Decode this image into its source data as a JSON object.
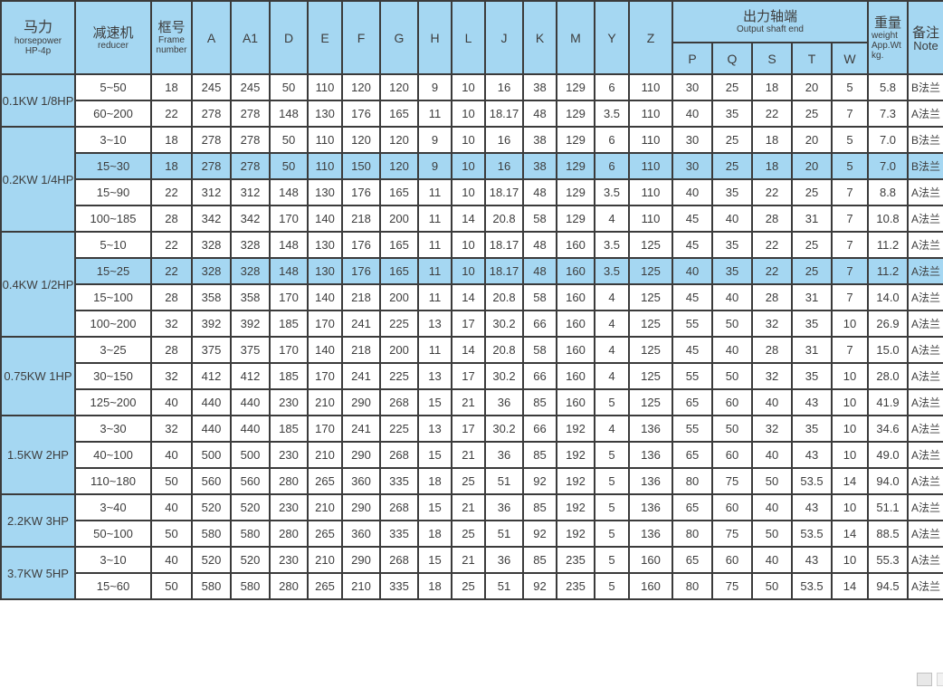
{
  "colors": {
    "header_blue": "#a5d7f2",
    "highlight_blue": "#a5d7f2",
    "border": "#3b3b3b",
    "text": "#3d3d3d"
  },
  "icons": {
    "corner_grip": "scrollbar-corner"
  },
  "table": {
    "header": {
      "power": {
        "zh": "马力",
        "en1": "horsepower",
        "en2": "HP-4p"
      },
      "reducer": {
        "zh": "减速机",
        "en1": "reducer"
      },
      "frame": {
        "zh": "框号",
        "en1": "Frame",
        "en2": "number"
      },
      "dims": [
        "A",
        "A1",
        "D",
        "E",
        "F",
        "G",
        "H",
        "L",
        "J",
        "K",
        "M",
        "Y",
        "Z"
      ],
      "output_shaft": {
        "zh": "出力轴端",
        "en1": "Output shaft end",
        "subs": [
          "P",
          "Q",
          "S",
          "T",
          "W"
        ]
      },
      "weight": {
        "zh": "重量",
        "en1": "weight",
        "en2": "App.Wt",
        "en3": "kg."
      },
      "note": {
        "zh": "备注",
        "en1": "Note"
      }
    },
    "groups": [
      {
        "power": "0.1KW 1/8HP",
        "rows": [
          {
            "reducer": "5~50",
            "highlight": false,
            "cells": [
              "18",
              "245",
              "245",
              "50",
              "110",
              "120",
              "120",
              "9",
              "10",
              "16",
              "38",
              "129",
              "6",
              "110",
              "30",
              "25",
              "18",
              "20",
              "5"
            ],
            "weight": "5.8",
            "note": "B法兰"
          },
          {
            "reducer": "60~200",
            "highlight": false,
            "cells": [
              "22",
              "278",
              "278",
              "148",
              "130",
              "176",
              "165",
              "11",
              "10",
              "18.17",
              "48",
              "129",
              "3.5",
              "110",
              "40",
              "35",
              "22",
              "25",
              "7"
            ],
            "weight": "7.3",
            "note": "A法兰"
          }
        ]
      },
      {
        "power": "0.2KW 1/4HP",
        "rows": [
          {
            "reducer": "3~10",
            "highlight": false,
            "cells": [
              "18",
              "278",
              "278",
              "50",
              "110",
              "120",
              "120",
              "9",
              "10",
              "16",
              "38",
              "129",
              "6",
              "110",
              "30",
              "25",
              "18",
              "20",
              "5"
            ],
            "weight": "7.0",
            "note": "B法兰"
          },
          {
            "reducer": "15~30",
            "highlight": true,
            "cells": [
              "18",
              "278",
              "278",
              "50",
              "110",
              "150",
              "120",
              "9",
              "10",
              "16",
              "38",
              "129",
              "6",
              "110",
              "30",
              "25",
              "18",
              "20",
              "5"
            ],
            "weight": "7.0",
            "note": "B法兰"
          },
          {
            "reducer": "15~90",
            "highlight": false,
            "cells": [
              "22",
              "312",
              "312",
              "148",
              "130",
              "176",
              "165",
              "11",
              "10",
              "18.17",
              "48",
              "129",
              "3.5",
              "110",
              "40",
              "35",
              "22",
              "25",
              "7"
            ],
            "weight": "8.8",
            "note": "A法兰"
          },
          {
            "reducer": "100~185",
            "highlight": false,
            "cells": [
              "28",
              "342",
              "342",
              "170",
              "140",
              "218",
              "200",
              "11",
              "14",
              "20.8",
              "58",
              "129",
              "4",
              "110",
              "45",
              "40",
              "28",
              "31",
              "7"
            ],
            "weight": "10.8",
            "note": "A法兰"
          }
        ]
      },
      {
        "power": "0.4KW 1/2HP",
        "rows": [
          {
            "reducer": "5~10",
            "highlight": false,
            "cells": [
              "22",
              "328",
              "328",
              "148",
              "130",
              "176",
              "165",
              "11",
              "10",
              "18.17",
              "48",
              "160",
              "3.5",
              "125",
              "45",
              "35",
              "22",
              "25",
              "7"
            ],
            "weight": "11.2",
            "note": "A法兰"
          },
          {
            "reducer": "15~25",
            "highlight": true,
            "cells": [
              "22",
              "328",
              "328",
              "148",
              "130",
              "176",
              "165",
              "11",
              "10",
              "18.17",
              "48",
              "160",
              "3.5",
              "125",
              "40",
              "35",
              "22",
              "25",
              "7"
            ],
            "weight": "11.2",
            "note": "A法兰"
          },
          {
            "reducer": "15~100",
            "highlight": false,
            "cells": [
              "28",
              "358",
              "358",
              "170",
              "140",
              "218",
              "200",
              "11",
              "14",
              "20.8",
              "58",
              "160",
              "4",
              "125",
              "45",
              "40",
              "28",
              "31",
              "7"
            ],
            "weight": "14.0",
            "note": "A法兰"
          },
          {
            "reducer": "100~200",
            "highlight": false,
            "cells": [
              "32",
              "392",
              "392",
              "185",
              "170",
              "241",
              "225",
              "13",
              "17",
              "30.2",
              "66",
              "160",
              "4",
              "125",
              "55",
              "50",
              "32",
              "35",
              "10"
            ],
            "weight": "26.9",
            "note": "A法兰"
          }
        ]
      },
      {
        "power": "0.75KW 1HP",
        "rows": [
          {
            "reducer": "3~25",
            "highlight": false,
            "cells": [
              "28",
              "375",
              "375",
              "170",
              "140",
              "218",
              "200",
              "11",
              "14",
              "20.8",
              "58",
              "160",
              "4",
              "125",
              "45",
              "40",
              "28",
              "31",
              "7"
            ],
            "weight": "15.0",
            "note": "A法兰"
          },
          {
            "reducer": "30~150",
            "highlight": false,
            "cells": [
              "32",
              "412",
              "412",
              "185",
              "170",
              "241",
              "225",
              "13",
              "17",
              "30.2",
              "66",
              "160",
              "4",
              "125",
              "55",
              "50",
              "32",
              "35",
              "10"
            ],
            "weight": "28.0",
            "note": "A法兰"
          },
          {
            "reducer": "125~200",
            "highlight": false,
            "cells": [
              "40",
              "440",
              "440",
              "230",
              "210",
              "290",
              "268",
              "15",
              "21",
              "36",
              "85",
              "160",
              "5",
              "125",
              "65",
              "60",
              "40",
              "43",
              "10"
            ],
            "weight": "41.9",
            "note": "A法兰"
          }
        ]
      },
      {
        "power": "1.5KW 2HP",
        "rows": [
          {
            "reducer": "3~30",
            "highlight": false,
            "cells": [
              "32",
              "440",
              "440",
              "185",
              "170",
              "241",
              "225",
              "13",
              "17",
              "30.2",
              "66",
              "192",
              "4",
              "136",
              "55",
              "50",
              "32",
              "35",
              "10"
            ],
            "weight": "34.6",
            "note": "A法兰"
          },
          {
            "reducer": "40~100",
            "highlight": false,
            "cells": [
              "40",
              "500",
              "500",
              "230",
              "210",
              "290",
              "268",
              "15",
              "21",
              "36",
              "85",
              "192",
              "5",
              "136",
              "65",
              "60",
              "40",
              "43",
              "10"
            ],
            "weight": "49.0",
            "note": "A法兰"
          },
          {
            "reducer": "110~180",
            "highlight": false,
            "cells": [
              "50",
              "560",
              "560",
              "280",
              "265",
              "360",
              "335",
              "18",
              "25",
              "51",
              "92",
              "192",
              "5",
              "136",
              "80",
              "75",
              "50",
              "53.5",
              "14"
            ],
            "weight": "94.0",
            "note": "A法兰"
          }
        ]
      },
      {
        "power": "2.2KW 3HP",
        "rows": [
          {
            "reducer": "3~40",
            "highlight": false,
            "cells": [
              "40",
              "520",
              "520",
              "230",
              "210",
              "290",
              "268",
              "15",
              "21",
              "36",
              "85",
              "192",
              "5",
              "136",
              "65",
              "60",
              "40",
              "43",
              "10"
            ],
            "weight": "51.1",
            "note": "A法兰"
          },
          {
            "reducer": "50~100",
            "highlight": false,
            "cells": [
              "50",
              "580",
              "580",
              "280",
              "265",
              "360",
              "335",
              "18",
              "25",
              "51",
              "92",
              "192",
              "5",
              "136",
              "80",
              "75",
              "50",
              "53.5",
              "14"
            ],
            "weight": "88.5",
            "note": "A法兰"
          }
        ]
      },
      {
        "power": "3.7KW 5HP",
        "rows": [
          {
            "reducer": "3~10",
            "highlight": false,
            "cells": [
              "40",
              "520",
              "520",
              "230",
              "210",
              "290",
              "268",
              "15",
              "21",
              "36",
              "85",
              "235",
              "5",
              "160",
              "65",
              "60",
              "40",
              "43",
              "10"
            ],
            "weight": "55.3",
            "note": "A法兰"
          },
          {
            "reducer": "15~60",
            "highlight": false,
            "cells": [
              "50",
              "580",
              "580",
              "280",
              "265",
              "210",
              "335",
              "18",
              "25",
              "51",
              "92",
              "235",
              "5",
              "160",
              "80",
              "75",
              "50",
              "53.5",
              "14"
            ],
            "weight": "94.5",
            "note": "A法兰"
          }
        ]
      }
    ]
  }
}
